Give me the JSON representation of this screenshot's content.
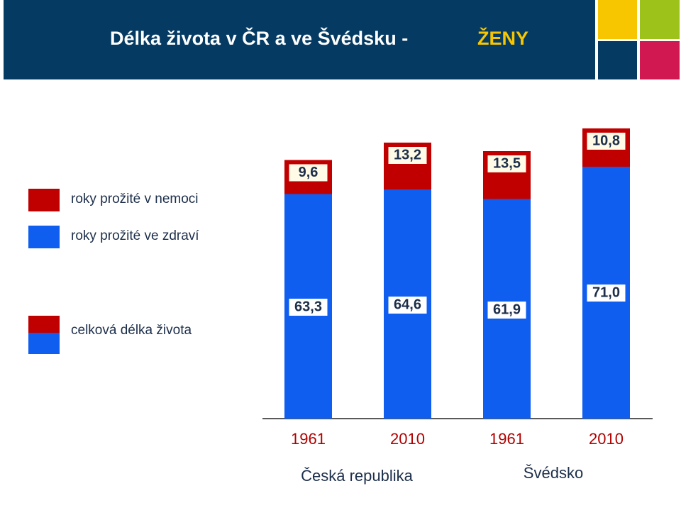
{
  "header": {
    "title": "Délka života v ČR a ve Švédsku  -",
    "title_highlight": "ŽENY"
  },
  "chart_data": {
    "type": "bar",
    "stacked": true,
    "categories": [
      "1961",
      "2010",
      "1961",
      "2010"
    ],
    "groups": [
      "Česká republika",
      "Švédsko"
    ],
    "series": [
      {
        "name": "roky prožité ve zdraví",
        "color": "#0f5ef0",
        "values": [
          63.3,
          64.6,
          61.9,
          71.0
        ],
        "value_labels": [
          "63,3",
          "64,6",
          "61,9",
          "71,0"
        ]
      },
      {
        "name": "roky prožité v nemoci",
        "color": "#c00000",
        "values": [
          9.6,
          13.2,
          13.5,
          10.8
        ],
        "value_labels": [
          "9,6",
          "13,2",
          "13,5",
          "10,8"
        ]
      }
    ],
    "total_label": "celková délka života"
  }
}
